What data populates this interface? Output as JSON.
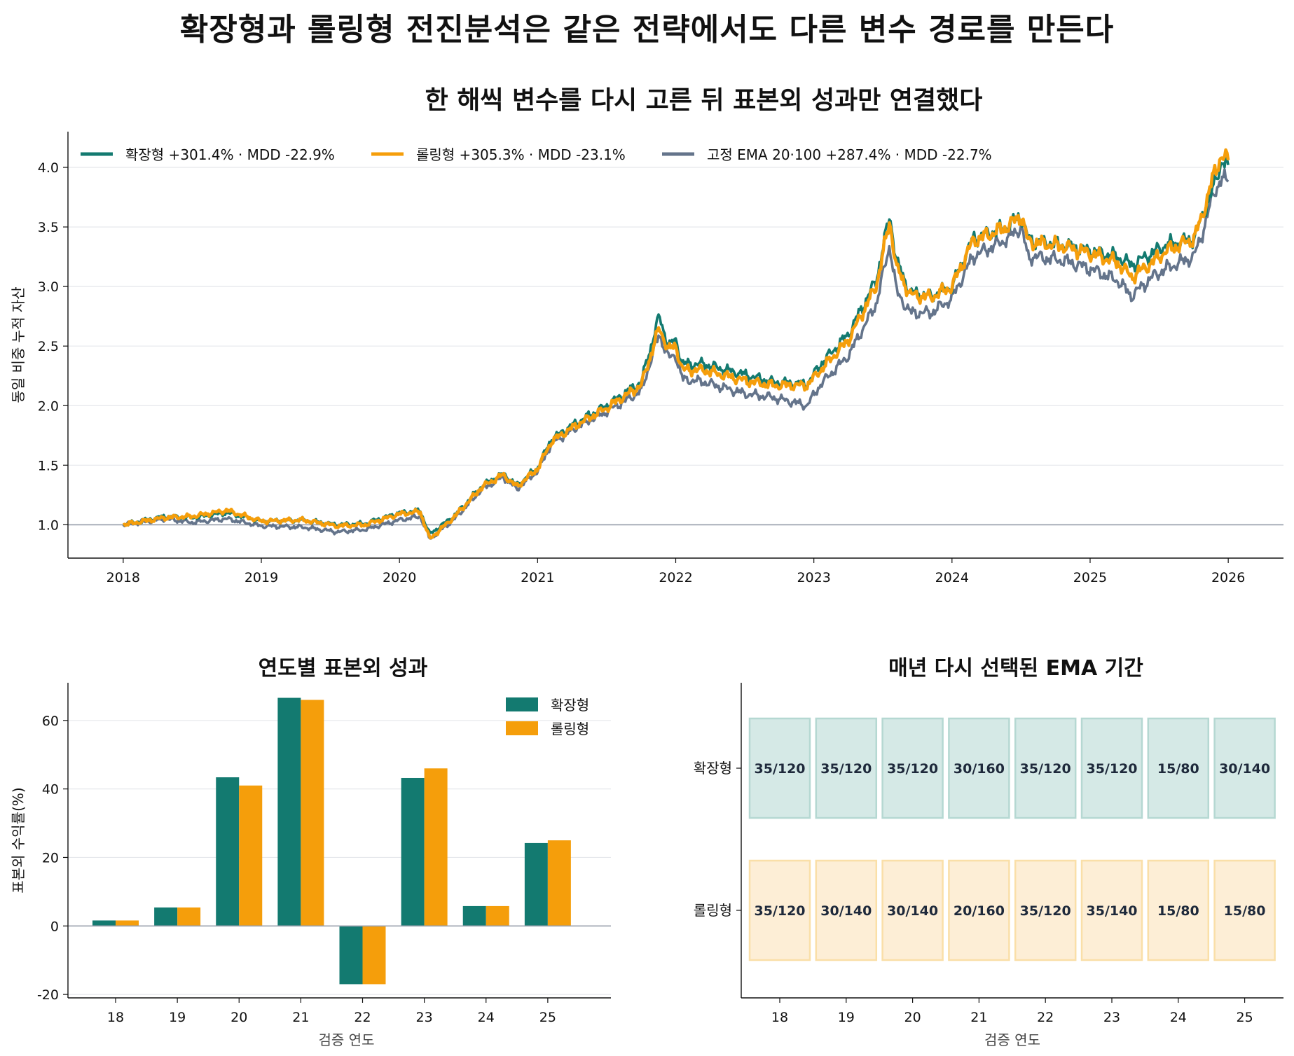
{
  "suptitle": "확장형과 롤링형 전진분석은 같은 전략에서도 다른 변수 경로를 만든다",
  "colors": {
    "expanding": "#137a70",
    "rolling": "#f59e0b",
    "fixed": "#64748b",
    "baseline": "#9ca3af",
    "grid": "#e5e7eb",
    "axis": "#111111"
  },
  "chart_data": [
    {
      "type": "line",
      "title": "한 해씩 변수를 다시 고른 뒤 표본외 성과만 연결했다",
      "xlabel": "",
      "ylabel": "동일 비중 누적 자산",
      "xlim": [
        2017.6,
        2026.4
      ],
      "ylim": [
        0.72,
        4.3
      ],
      "yticks": [
        "1.0",
        "1.5",
        "2.0",
        "2.5",
        "3.0",
        "3.5",
        "4.0"
      ],
      "xticks": [
        "2018",
        "2019",
        "2020",
        "2021",
        "2022",
        "2023",
        "2024",
        "2025",
        "2026"
      ],
      "baseline": 1.0,
      "grid": "horizontal",
      "legend_position": "top-left",
      "legend": [
        {
          "key": "expanding",
          "label": "확장형  +301.4% · MDD -22.9%"
        },
        {
          "key": "rolling",
          "label": "롤링형  +305.3% · MDD -23.1%"
        },
        {
          "key": "fixed",
          "label": "고정 EMA 20·100  +287.4% · MDD -22.7%"
        }
      ],
      "anchors": {
        "x": [
          2018.0,
          2018.3,
          2018.5,
          2018.75,
          2019.0,
          2019.3,
          2019.55,
          2019.75,
          2020.0,
          2020.15,
          2020.22,
          2020.4,
          2020.6,
          2020.75,
          2020.85,
          2021.0,
          2021.1,
          2021.3,
          2021.5,
          2021.75,
          2021.88,
          2021.95,
          2022.0,
          2022.05,
          2022.2,
          2022.5,
          2022.7,
          2022.95,
          2023.05,
          2023.25,
          2023.45,
          2023.55,
          2023.6,
          2023.7,
          2023.85,
          2024.0,
          2024.15,
          2024.4,
          2024.5,
          2024.55,
          2024.6,
          2024.8,
          2025.0,
          2025.2,
          2025.3,
          2025.45,
          2025.55,
          2025.75,
          2025.8,
          2025.9,
          2025.95,
          2026.0
        ],
        "expanding": [
          1.0,
          1.07,
          1.06,
          1.1,
          1.03,
          1.04,
          1.0,
          1.01,
          1.1,
          1.12,
          0.92,
          1.08,
          1.33,
          1.43,
          1.33,
          1.48,
          1.72,
          1.87,
          2.0,
          2.2,
          2.75,
          2.5,
          2.55,
          2.35,
          2.35,
          2.26,
          2.2,
          2.18,
          2.35,
          2.6,
          3.05,
          3.6,
          3.2,
          2.95,
          2.92,
          3.0,
          3.4,
          3.5,
          3.6,
          3.4,
          3.38,
          3.35,
          3.3,
          3.25,
          3.18,
          3.28,
          3.35,
          3.4,
          3.55,
          3.85,
          4.05,
          4.02
        ],
        "rolling": [
          1.0,
          1.06,
          1.07,
          1.12,
          1.03,
          1.04,
          0.99,
          1.0,
          1.09,
          1.11,
          0.88,
          1.07,
          1.32,
          1.42,
          1.32,
          1.47,
          1.7,
          1.85,
          1.98,
          2.17,
          2.65,
          2.47,
          2.5,
          2.3,
          2.3,
          2.21,
          2.17,
          2.17,
          2.3,
          2.55,
          3.0,
          3.55,
          3.15,
          2.93,
          2.91,
          3.0,
          3.38,
          3.5,
          3.6,
          3.38,
          3.37,
          3.34,
          3.28,
          3.2,
          3.08,
          3.2,
          3.3,
          3.4,
          3.55,
          3.95,
          4.1,
          4.06
        ],
        "fixed": [
          1.0,
          1.05,
          1.02,
          1.05,
          0.99,
          0.98,
          0.94,
          0.96,
          1.04,
          1.07,
          0.88,
          1.05,
          1.3,
          1.4,
          1.3,
          1.45,
          1.68,
          1.83,
          1.95,
          2.12,
          2.6,
          2.4,
          2.42,
          2.22,
          2.2,
          2.1,
          2.07,
          2.0,
          2.18,
          2.42,
          2.85,
          3.35,
          2.95,
          2.78,
          2.78,
          2.9,
          3.25,
          3.4,
          3.5,
          3.25,
          3.25,
          3.22,
          3.15,
          3.05,
          2.92,
          3.08,
          3.15,
          3.25,
          3.4,
          3.8,
          3.9,
          3.88
        ]
      }
    },
    {
      "type": "bar",
      "title": "연도별 표본외 성과",
      "xlabel": "검증 연도",
      "ylabel": "표본외 수익률(%)",
      "categories": [
        "18",
        "19",
        "20",
        "21",
        "22",
        "23",
        "24",
        "25"
      ],
      "ylim": [
        -21,
        71
      ],
      "yticks": [
        "-20",
        "0",
        "20",
        "40",
        "60"
      ],
      "legend_position": "top-right",
      "series": [
        {
          "key": "expanding",
          "name": "확장형",
          "values": [
            1.6,
            5.4,
            43.4,
            66.6,
            -17.0,
            43.2,
            5.8,
            24.2
          ]
        },
        {
          "key": "rolling",
          "name": "롤링형",
          "values": [
            1.6,
            5.4,
            41.0,
            66.0,
            -17.0,
            46.0,
            5.8,
            25.0
          ]
        }
      ]
    },
    {
      "type": "table",
      "title": "매년 다시 선택된 EMA 기간",
      "xlabel": "검증 연도",
      "columns": [
        "18",
        "19",
        "20",
        "21",
        "22",
        "23",
        "24",
        "25"
      ],
      "rows": [
        {
          "key": "expanding",
          "label": "확장형",
          "values": [
            "35/120",
            "35/120",
            "35/120",
            "30/160",
            "35/120",
            "35/120",
            "15/80",
            "30/140"
          ]
        },
        {
          "key": "rolling",
          "label": "롤링형",
          "values": [
            "35/120",
            "30/140",
            "30/140",
            "20/160",
            "35/120",
            "35/140",
            "15/80",
            "15/80"
          ]
        }
      ]
    }
  ]
}
